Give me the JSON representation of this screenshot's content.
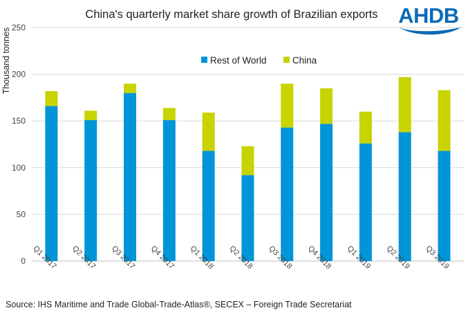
{
  "chart_data": {
    "type": "bar",
    "stacked": true,
    "title": "China's quarterly market share growth of Brazilian exports",
    "ylabel": "Thousand tonnes",
    "xlabel": "",
    "ylim": [
      0,
      250
    ],
    "yticks": [
      0,
      50,
      100,
      150,
      200,
      250
    ],
    "grid": true,
    "legend_position": "top",
    "categories": [
      "Q1 2017",
      "Q2 2017",
      "Q3 2017",
      "Q4 2017",
      "Q1 2018",
      "Q2 2018",
      "Q3 2018",
      "Q4 2018",
      "Q1 2019",
      "Q2 2019",
      "Q3 2019"
    ],
    "series": [
      {
        "name": "Rest of World",
        "color": "#0095d9",
        "values": [
          166,
          151,
          180,
          151,
          118,
          92,
          143,
          147,
          126,
          138,
          118
        ]
      },
      {
        "name": "China",
        "color": "#c8d400",
        "values": [
          16,
          10,
          10,
          13,
          41,
          31,
          47,
          38,
          34,
          59,
          65
        ]
      }
    ],
    "source": "Source: IHS Maritime and Trade Global-Trade-Atlas®, SECEX – Foreign Trade Secretariat"
  },
  "logo": {
    "text": "AHDB",
    "color": "#0a6ab6"
  }
}
